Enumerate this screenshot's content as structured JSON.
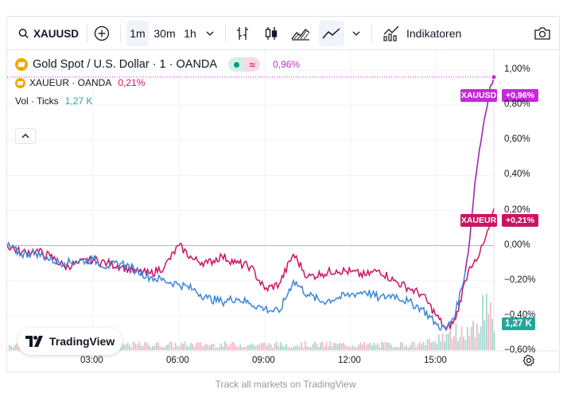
{
  "toolbar": {
    "symbol": "XAUUSD",
    "intervals": [
      "1m",
      "30m",
      "1h"
    ],
    "selected_interval": "1m",
    "indicators_label": "Indikatoren"
  },
  "legend": {
    "main_title": "Gold Spot / U.S. Dollar · 1 · OANDA",
    "main_change": "0,96%",
    "compare_name": "XAUEUR · OANDA",
    "compare_change": "0,21%",
    "volume_label": "Vol · Ticks",
    "volume_value": "1,27 K"
  },
  "price_tags": {
    "xauusd_name": "XAUUSD",
    "xauusd_value": "+0,96%",
    "xaueur_name": "XAUEUR",
    "xaueur_value": "+0,21%",
    "volume": "1,27 K"
  },
  "logo_text": "TradingView",
  "footer": "Track all markets on TradingView",
  "colors": {
    "xauusd_line": "#3a86d8",
    "xauusd_spike": "#9c27b0",
    "xaueur_line": "#cc1463",
    "xauusd_tag": "#c42ad8",
    "xaueur_tag": "#cc1463",
    "volume_tag": "#26a69a",
    "vol_up": "#9bd4cc",
    "vol_down": "#f4b3be"
  },
  "chart_data": {
    "type": "line",
    "y_axis_labels": [
      "1,00%",
      "0,80%",
      "0,60%",
      "0,40%",
      "0,20%",
      "0,00%",
      "−0,20%",
      "−0,40%",
      "−0,60%"
    ],
    "x_axis_labels": [
      "03:00",
      "06:00",
      "09:00",
      "12:00",
      "15:00"
    ],
    "ylim": [
      -0.6,
      1.0
    ],
    "grid": true,
    "series": [
      {
        "name": "XAUUSD",
        "x": [
          "00:00",
          "00:30",
          "01:00",
          "01:30",
          "02:00",
          "02:30",
          "03:00",
          "03:30",
          "04:00",
          "04:30",
          "05:00",
          "05:30",
          "06:00",
          "06:30",
          "07:00",
          "07:30",
          "08:00",
          "08:30",
          "09:00",
          "09:30",
          "10:00",
          "10:30",
          "11:00",
          "11:30",
          "12:00",
          "12:30",
          "13:00",
          "13:30",
          "14:00",
          "14:30",
          "15:00",
          "15:20",
          "15:40",
          "16:00",
          "16:10",
          "16:20",
          "16:30",
          "16:40",
          "16:50",
          "17:00"
        ],
        "values": [
          0.0,
          -0.05,
          -0.04,
          -0.08,
          -0.1,
          -0.09,
          -0.08,
          -0.12,
          -0.1,
          -0.14,
          -0.18,
          -0.2,
          -0.22,
          -0.25,
          -0.3,
          -0.32,
          -0.3,
          -0.33,
          -0.36,
          -0.38,
          -0.2,
          -0.28,
          -0.32,
          -0.3,
          -0.28,
          -0.26,
          -0.3,
          -0.28,
          -0.32,
          -0.36,
          -0.45,
          -0.48,
          -0.38,
          -0.15,
          0.05,
          0.35,
          0.55,
          0.72,
          0.88,
          0.96
        ]
      },
      {
        "name": "XAUEUR",
        "x": [
          "00:00",
          "00:30",
          "01:00",
          "01:30",
          "02:00",
          "02:30",
          "03:00",
          "03:30",
          "04:00",
          "04:30",
          "05:00",
          "05:30",
          "06:00",
          "06:30",
          "07:00",
          "07:30",
          "08:00",
          "08:30",
          "09:00",
          "09:30",
          "10:00",
          "10:30",
          "11:00",
          "11:30",
          "12:00",
          "12:30",
          "13:00",
          "13:30",
          "14:00",
          "14:30",
          "15:00",
          "15:20",
          "15:40",
          "16:00",
          "16:10",
          "16:20",
          "16:30",
          "16:40",
          "16:50",
          "17:00"
        ],
        "values": [
          0.0,
          -0.04,
          -0.03,
          -0.06,
          -0.12,
          -0.1,
          -0.08,
          -0.1,
          -0.12,
          -0.15,
          -0.16,
          -0.12,
          0.0,
          -0.08,
          -0.1,
          -0.06,
          -0.1,
          -0.12,
          -0.25,
          -0.22,
          -0.05,
          -0.18,
          -0.16,
          -0.14,
          -0.15,
          -0.17,
          -0.14,
          -0.2,
          -0.24,
          -0.28,
          -0.4,
          -0.48,
          -0.42,
          -0.2,
          -0.12,
          -0.08,
          -0.05,
          0.02,
          0.1,
          0.21
        ]
      }
    ]
  }
}
